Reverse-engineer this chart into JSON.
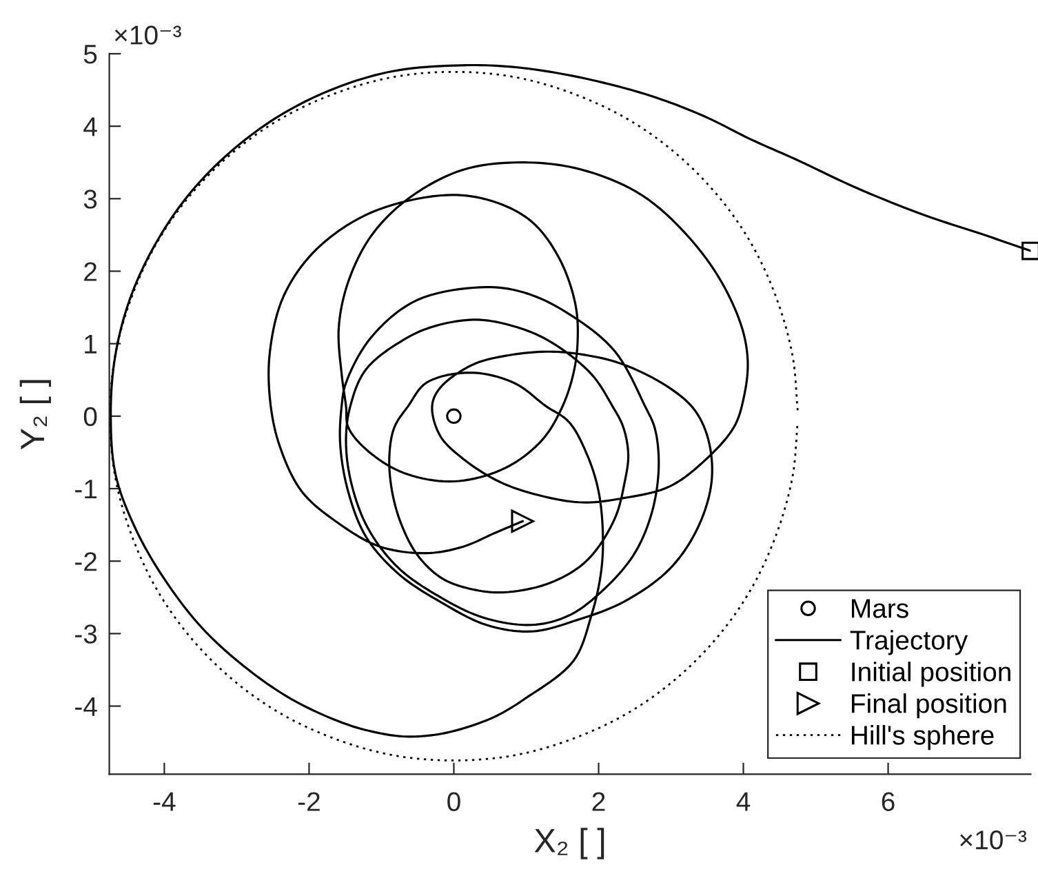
{
  "chart_data": {
    "type": "line",
    "xlabel": "X₂ [ ]",
    "ylabel": "Y₂ [ ]",
    "xlim": [
      -4.76,
      7.97
    ],
    "ylim": [
      -4.94,
      5
    ],
    "xticks": [
      -4,
      -2,
      0,
      2,
      4,
      6
    ],
    "yticks": [
      -4,
      -3,
      -2,
      -1,
      0,
      1,
      2,
      3,
      4,
      5
    ],
    "legend": "bottom right",
    "annotations": [
      "×10⁻³",
      "×10⁻³"
    ],
    "series": [
      {
        "name": "Mars",
        "type": "scatter",
        "marker": "circle",
        "color": "#000000",
        "x": [
          0
        ],
        "values": [
          0
        ]
      },
      {
        "name": "Trajectory",
        "line_style": "solid",
        "color": "#000000",
        "x": [
          7.97,
          7.27,
          6.51,
          5.56,
          4.73,
          4.1,
          3.52,
          2.98,
          2.38,
          1.56,
          0.79,
          0.09,
          -0.84,
          -1.65,
          -2.4,
          -3.07,
          -3.65,
          -4.12,
          -4.47,
          -4.68,
          -4.74,
          -4.67,
          -4.38,
          -3.97,
          -3.48,
          -2.9,
          -2.25,
          -1.54,
          -1.09,
          -0.67,
          -0.22,
          0.22,
          0.6,
          0.98,
          1.65,
          1.9,
          2.03,
          2.06,
          2.0,
          1.84,
          1.59,
          1.27,
          0.83,
          0.22,
          -0.38,
          -0.63,
          -0.82,
          -0.89,
          -0.86,
          -0.73,
          -0.5,
          -0.16,
          0.26,
          0.7,
          1.33,
          1.84,
          2.22,
          2.36,
          2.41,
          2.34,
          2.19,
          1.9,
          1.33,
          0.83,
          0.32,
          -0.2,
          -0.63,
          -1.21,
          -1.43,
          -1.49,
          -1.42,
          -1.19,
          -0.77,
          -0.2,
          0.41,
          1.08,
          1.59,
          2.03,
          2.48,
          2.73,
          2.83,
          2.78,
          2.64,
          2.22,
          1.59,
          1.02,
          0.45,
          -0.51,
          -1.14,
          -1.49,
          -1.55,
          -1.57,
          -1.46,
          -1.21,
          -0.76,
          -0.19,
          0.45,
          1.08,
          1.71,
          2.35,
          2.98,
          3.37,
          3.56,
          3.52,
          3.33,
          2.98,
          2.35,
          1.84,
          1.33,
          0.76,
          0.26,
          -0.19,
          -0.3,
          -0.19,
          0.13,
          0.64,
          1.21,
          1.78,
          2.35,
          2.98,
          3.49,
          3.87,
          4.0,
          4.06,
          3.94,
          3.49,
          2.67,
          1.84,
          1.02,
          0.13,
          -0.63,
          -1.14,
          -1.46,
          -1.59,
          -1.55,
          -1.49,
          -1.46,
          -1.21,
          -0.7,
          0.0,
          0.7,
          1.21,
          1.49,
          1.65,
          1.71,
          1.68,
          1.46,
          1.08,
          0.55,
          -0.1,
          -1.14,
          -1.9,
          -2.35,
          -2.54,
          -2.54,
          -2.41,
          -2.1,
          -1.59,
          -1.02,
          -0.38,
          0.13,
          0.57,
          0.95
        ],
        "values": [
          2.28,
          2.52,
          2.77,
          3.15,
          3.54,
          3.82,
          4.11,
          4.33,
          4.52,
          4.71,
          4.82,
          4.84,
          4.76,
          4.52,
          4.15,
          3.66,
          3.07,
          2.38,
          1.63,
          0.82,
          0,
          -0.82,
          -1.59,
          -2.29,
          -2.92,
          -3.45,
          -3.9,
          -4.23,
          -4.36,
          -4.42,
          -4.39,
          -4.28,
          -4.13,
          -3.9,
          -3.38,
          -2.75,
          -2.18,
          -1.67,
          -1.04,
          -0.53,
          -0.08,
          0.14,
          0.46,
          0.6,
          0.46,
          0.14,
          -0.15,
          -0.53,
          -1.0,
          -1.48,
          -1.92,
          -2.24,
          -2.39,
          -2.43,
          -2.3,
          -1.99,
          -1.42,
          -0.91,
          -0.53,
          -0.15,
          0.14,
          0.58,
          1.03,
          1.24,
          1.33,
          1.26,
          1.09,
          0.65,
          0.14,
          -0.34,
          -0.91,
          -1.54,
          -2.09,
          -2.49,
          -2.78,
          -2.88,
          -2.75,
          -2.43,
          -1.92,
          -1.35,
          -0.72,
          -0.18,
          0.14,
          0.9,
          1.41,
          1.69,
          1.78,
          1.6,
          1.09,
          0.46,
          0.14,
          -0.39,
          -1.04,
          -1.67,
          -2.18,
          -2.56,
          -2.88,
          -2.97,
          -2.81,
          -2.56,
          -2.11,
          -1.54,
          -0.91,
          -0.34,
          0.08,
          0.39,
          0.71,
          0.84,
          0.89,
          0.84,
          0.71,
          0.39,
          0.14,
          -0.27,
          -0.59,
          -0.91,
          -1.1,
          -1.19,
          -1.13,
          -0.97,
          -0.59,
          -0.15,
          0.23,
          0.77,
          1.34,
          2.17,
          3.0,
          3.38,
          3.5,
          3.4,
          3.0,
          2.49,
          1.85,
          1.22,
          0.58,
          0.14,
          -0.15,
          -0.46,
          -0.78,
          -0.9,
          -0.72,
          -0.34,
          0.11,
          0.58,
          1.03,
          1.54,
          2.17,
          2.68,
          2.96,
          3.05,
          2.81,
          2.3,
          1.66,
          0.9,
          0.23,
          -0.4,
          -1.04,
          -1.48,
          -1.8,
          -1.89,
          -1.8,
          -1.61,
          -1.45
        ]
      },
      {
        "name": "Initial position",
        "type": "scatter",
        "marker": "square",
        "color": "#000000",
        "x": [
          7.97
        ],
        "values": [
          2.28
        ]
      },
      {
        "name": "Final position",
        "type": "scatter",
        "marker": "triangle",
        "color": "#000000",
        "x": [
          0.95
        ],
        "values": [
          -1.45
        ]
      },
      {
        "name": "Hill's sphere",
        "line_style": "dotted",
        "color": "#000000",
        "x": [
          4.75,
          4.68,
          4.46,
          4.11,
          3.64,
          3.05,
          2.38,
          1.62,
          0.83,
          0,
          -0.83,
          -1.62,
          -2.38,
          -3.05,
          -3.64,
          -4.11,
          -4.46,
          -4.68,
          -4.75,
          -4.68,
          -4.46,
          -4.11,
          -3.64,
          -3.05,
          -2.38,
          -1.62,
          -0.83,
          0,
          0.83,
          1.62,
          2.38,
          3.05,
          3.64,
          4.11,
          4.46,
          4.68,
          4.75
        ],
        "values": [
          0.08,
          0.83,
          1.62,
          2.38,
          3.05,
          3.64,
          4.11,
          4.46,
          4.68,
          4.75,
          4.68,
          4.46,
          4.11,
          3.64,
          3.05,
          2.38,
          1.62,
          0.83,
          0,
          -0.83,
          -1.62,
          -2.38,
          -3.05,
          -3.64,
          -4.11,
          -4.46,
          -4.68,
          -4.75,
          -4.68,
          -4.46,
          -4.11,
          -3.64,
          -3.05,
          -2.38,
          -1.62,
          -0.83,
          -0.08
        ]
      }
    ]
  }
}
